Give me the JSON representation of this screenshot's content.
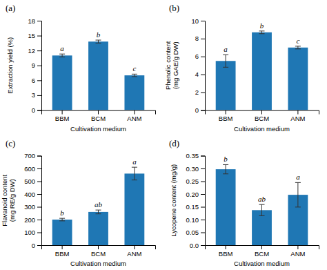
{
  "chart_data": [
    {
      "type": "bar",
      "title": "(a)",
      "xlabel": "Cultivation medium",
      "ylabel": "Extraction yield (%)",
      "categories": [
        "BBM",
        "BCM",
        "ANM"
      ],
      "values": [
        11.0,
        13.8,
        7.0
      ],
      "errors": [
        0.3,
        0.3,
        0.25
      ],
      "annotations": [
        "a",
        "b",
        "c"
      ],
      "ylim": [
        0,
        18
      ],
      "yticks": [
        0,
        3,
        6,
        9,
        12,
        15,
        18
      ],
      "grid": false
    },
    {
      "type": "bar",
      "title": "(b)",
      "xlabel": "Cultivation medium",
      "ylabel": "Phenolic content\n(mg GAE/g DW)",
      "categories": [
        "BBM",
        "BCM",
        "ANM"
      ],
      "values": [
        5.5,
        8.7,
        7.0
      ],
      "errors": [
        0.7,
        0.15,
        0.15
      ],
      "annotations": [
        "a",
        "b",
        "c"
      ],
      "ylim": [
        0,
        10
      ],
      "yticks": [
        0,
        2,
        4,
        6,
        8,
        10
      ],
      "grid": false
    },
    {
      "type": "bar",
      "title": "(c)",
      "xlabel": "Cultivation medium",
      "ylabel": "Flavanoid content\n(mg RE/g DW)",
      "categories": [
        "BBM",
        "BCM",
        "ANM"
      ],
      "values": [
        200,
        260,
        560
      ],
      "errors": [
        10,
        15,
        50
      ],
      "annotations": [
        "b",
        "ab",
        "a"
      ],
      "ylim": [
        0,
        700
      ],
      "yticks": [
        0,
        100,
        200,
        300,
        400,
        500,
        600,
        700
      ],
      "grid": false
    },
    {
      "type": "bar",
      "title": "(d)",
      "xlabel": "Cultivation medium",
      "ylabel": "Lycopene content (mg/g)",
      "categories": [
        "BBM",
        "BCM",
        "ANM"
      ],
      "values": [
        0.297,
        0.137,
        0.197
      ],
      "errors": [
        0.018,
        0.022,
        0.048
      ],
      "annotations": [
        "b",
        "ab",
        "a"
      ],
      "ylim": [
        0,
        0.35
      ],
      "yticks": [
        {
          "value": 0.0,
          "label": "0.0"
        },
        0.05,
        {
          "value": 0.1,
          "label": "0.10"
        },
        0.15,
        {
          "value": 0.2,
          "label": "0.20"
        },
        0.25,
        {
          "value": 0.3,
          "label": "0.30"
        },
        0.35
      ],
      "grid": false
    }
  ]
}
